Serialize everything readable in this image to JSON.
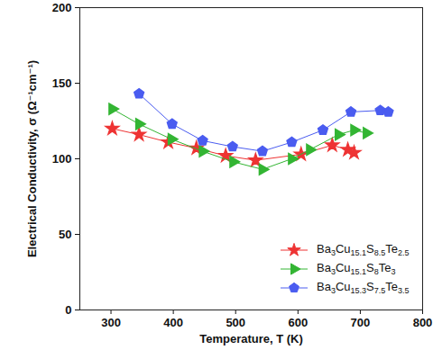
{
  "chart_data": {
    "type": "line",
    "x_label": "Temperature, T (K)",
    "y_label": "Electrical Conductivity, σ (Ω⁻¹cm⁻¹)",
    "xlim": [
      250,
      800
    ],
    "xticks": [
      300,
      400,
      500,
      600,
      700,
      800
    ],
    "ylim": [
      0,
      200
    ],
    "yticks": [
      0,
      50,
      100,
      150,
      200
    ],
    "grid": false,
    "legend": "lower right",
    "series": [
      {
        "name": "Ba3Cu15.1S8.5Te2.5",
        "color": "#ee3333",
        "marker": "star",
        "x": [
          302,
          345,
          392,
          437,
          484,
          532,
          605,
          655,
          680,
          690
        ],
        "values": [
          120,
          116,
          111,
          107,
          102,
          99,
          103,
          109,
          106,
          104
        ]
      },
      {
        "name": "Ba3Cu15.1S8Te3",
        "color": "#33b533",
        "marker": "triangle-right",
        "x": [
          302,
          345,
          397,
          447,
          496,
          543,
          590,
          619,
          665,
          690,
          710
        ],
        "values": [
          133,
          123,
          113,
          105,
          98,
          93,
          100,
          106,
          116,
          119,
          117
        ]
      },
      {
        "name": "Ba3Cu15.3S7.5Te3.5",
        "color": "#4a5cf0",
        "marker": "pentagon",
        "x": [
          345,
          398,
          447,
          495,
          543,
          590,
          640,
          685,
          732,
          745
        ],
        "values": [
          143,
          123,
          112,
          108,
          105,
          111,
          119,
          131,
          132,
          131
        ]
      }
    ]
  }
}
